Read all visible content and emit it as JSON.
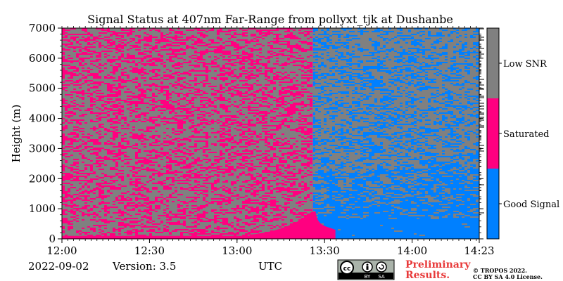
{
  "chart_data": {
    "type": "heatmap",
    "title": "Signal Status at 407nm Far-Range from pollyxt_tjk at Dushanbe",
    "xlabel": "UTC",
    "ylabel": "Height (m)",
    "x_range": [
      "12:00",
      "14:23"
    ],
    "ylim": [
      0,
      7000
    ],
    "x_ticks": [
      "12:00",
      "12:30",
      "13:00",
      "13:30",
      "14:00",
      "14:23"
    ],
    "x_tick_minutes": [
      0,
      30,
      60,
      90,
      120,
      143
    ],
    "y_ticks": [
      "0",
      "1000",
      "2000",
      "3000",
      "4000",
      "5000",
      "6000",
      "7000"
    ],
    "y_tick_values": [
      0,
      1000,
      2000,
      3000,
      4000,
      5000,
      6000,
      7000
    ],
    "categories": [
      {
        "label": "Good Signal",
        "color": "#0080ff"
      },
      {
        "label": "Saturated",
        "color": "#ff0080"
      },
      {
        "label": "Low SNR",
        "color": "#808080"
      }
    ],
    "regions": [
      {
        "x_start": "12:00",
        "x_end": "13:26",
        "dominant": "Saturated",
        "noise": "Low SNR"
      },
      {
        "x_start": "13:26",
        "x_end": "14:23",
        "dominant": "Good Signal",
        "noise": "Low SNR",
        "good_signal_top_m": [
          2000,
          3000
        ]
      }
    ],
    "legend": "colorbar-right"
  },
  "footer": {
    "date": "2022-09-02",
    "version": "Version: 3.5",
    "utc": "UTC",
    "preliminary_line1": "Preliminary",
    "preliminary_line2": "Results.",
    "copyright_line1": "© TROPOS 2022.",
    "copyright_line2": "CC BY SA 4.0 License."
  },
  "badge": {
    "label_by": "BY",
    "label_sa": "SA"
  }
}
